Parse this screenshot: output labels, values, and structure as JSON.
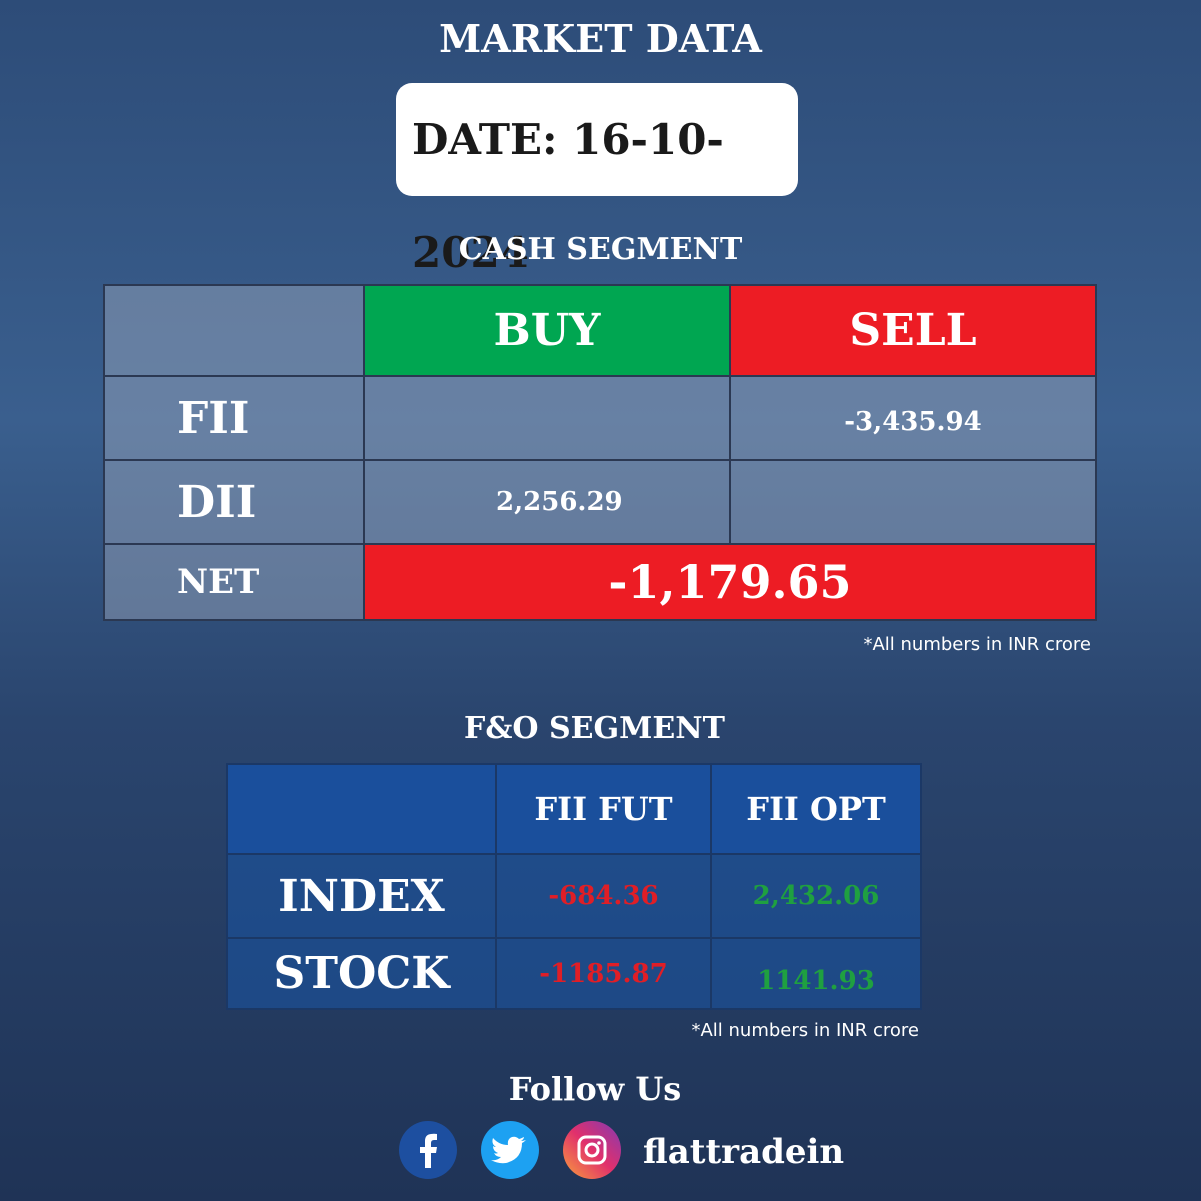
{
  "title": "MARKET DATA",
  "date": "DATE: 16-10-2024",
  "cash_segment": {
    "title": "CASH SEGMENT",
    "columns": [
      "BUY",
      "SELL"
    ],
    "rows": [
      {
        "label": "FII",
        "sell": "-3,435.94"
      },
      {
        "label": "DII",
        "buy": "2,256.29"
      }
    ],
    "net": {
      "label": "NET",
      "value": "-1,179.65"
    },
    "note": "*All numbers in INR crore"
  },
  "fo_segment": {
    "title": "F&O SEGMENT",
    "columns": [
      "FII FUT",
      "FII OPT"
    ],
    "rows": [
      {
        "label": "INDEX",
        "values": [
          "-684.36",
          "2,432.06"
        ]
      },
      {
        "label": "STOCK",
        "values": [
          "-1185.87",
          "1141.93"
        ]
      }
    ],
    "note": "*All numbers in INR crore"
  },
  "footer": {
    "follow": "Follow Us",
    "handle": "flattradein"
  }
}
